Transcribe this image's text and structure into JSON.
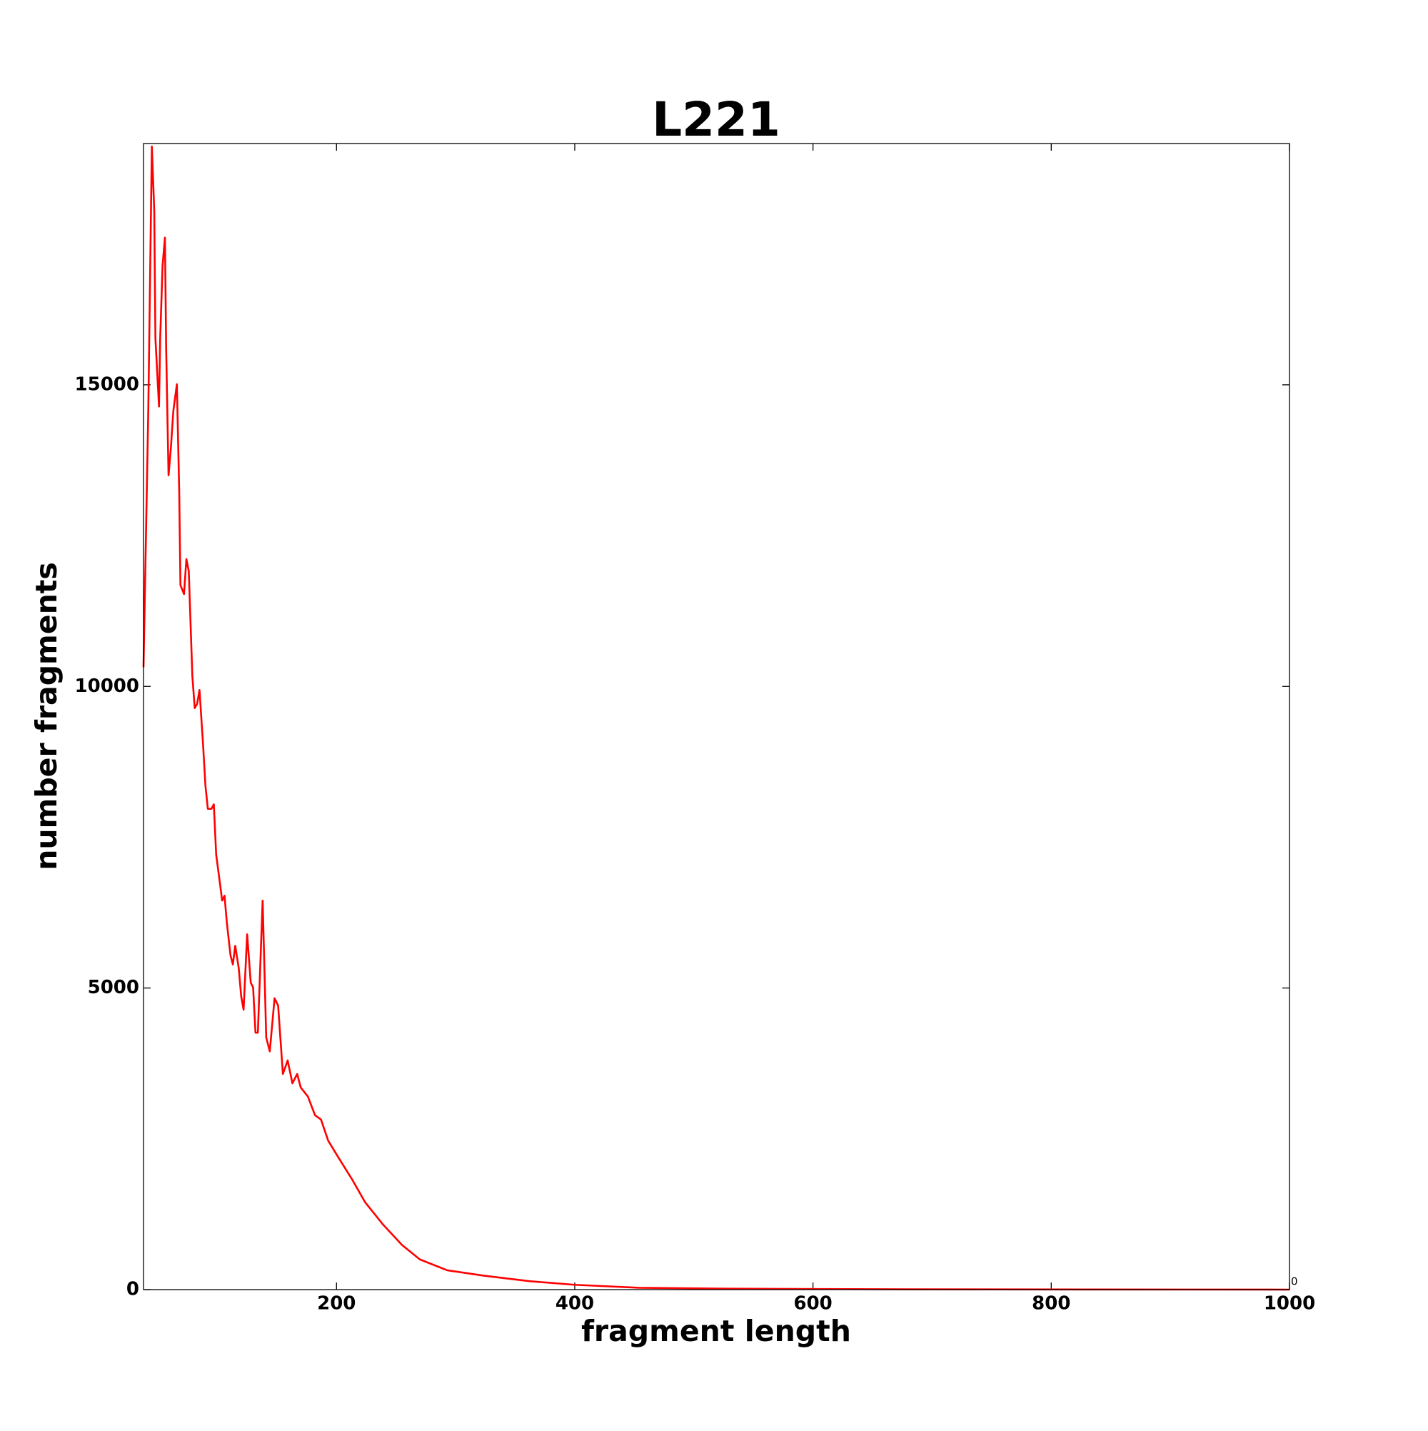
{
  "chart_data": {
    "type": "line",
    "title": "L221",
    "x_label": "fragment length",
    "y_label": "number fragments",
    "corner_text": "0",
    "x": [
      38,
      42,
      45,
      47,
      48,
      51,
      52,
      54,
      56,
      57,
      59,
      61,
      63,
      66,
      68,
      69,
      72,
      74,
      76,
      79,
      81,
      83,
      85,
      86,
      88,
      90,
      92,
      95,
      97,
      99,
      102,
      104,
      106,
      108,
      111,
      113,
      115,
      118,
      120,
      122,
      125,
      128,
      130,
      132,
      134,
      138,
      141,
      144,
      148,
      151,
      155,
      159,
      163,
      167,
      170,
      176,
      182,
      187,
      193,
      201,
      213,
      224,
      239,
      255,
      270,
      293,
      324,
      362,
      400,
      454,
      531,
      684,
      1000
    ],
    "series": [
      {
        "name": "L221",
        "color": "#ff0000",
        "values": [
          10318,
          14560,
          18950,
          17890,
          15770,
          14640,
          15770,
          16980,
          17440,
          15620,
          13500,
          13960,
          14560,
          15010,
          13200,
          11680,
          11530,
          12110,
          11910,
          10170,
          9640,
          9710,
          9940,
          9640,
          9030,
          8350,
          7970,
          7970,
          8045,
          7210,
          6760,
          6450,
          6530,
          6075,
          5545,
          5390,
          5700,
          5320,
          4860,
          4640,
          5890,
          5090,
          5010,
          4260,
          4260,
          6450,
          4180,
          3950,
          4830,
          4710,
          3575,
          3800,
          3420,
          3575,
          3350,
          3200,
          2890,
          2820,
          2470,
          2210,
          1830,
          1450,
          1080,
          740,
          500,
          320,
          230,
          140,
          80,
          30,
          15,
          5,
          0
        ]
      }
    ],
    "xlim": [
      38,
      1000
    ],
    "xticks": [
      200,
      400,
      600,
      800,
      1000
    ],
    "ylim": [
      0,
      19000
    ],
    "yticks": [
      0,
      5000,
      10000,
      15000
    ],
    "grid": false
  }
}
